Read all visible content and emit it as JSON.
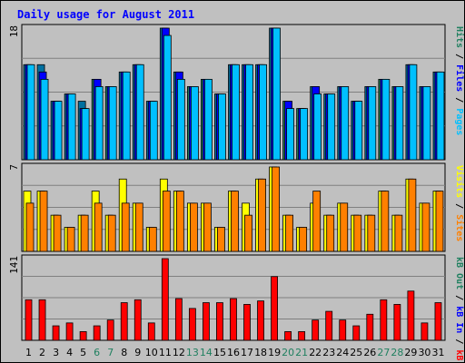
{
  "title": "Daily usage for August 2011",
  "colors": {
    "hits": "#00c0ff",
    "files": "#0000ff",
    "pages": "#00c0ff",
    "visits": "#ffff00",
    "sites": "#ff8000",
    "kbytes": "#ff0000",
    "weekend": "#208060",
    "weekday": "#000000",
    "separator": "#ffffff",
    "kbout": "#208060",
    "kbin": "#0000ff"
  },
  "chart_data": [
    {
      "type": "bar",
      "name": "hits-files-pages",
      "ymax_label": "18",
      "ymax": 18,
      "right_labels": [
        {
          "text": "Pages",
          "color": "#00c0ff"
        },
        {
          "text": " / ",
          "color": "#000000"
        },
        {
          "text": "Files",
          "color": "#0000ff"
        },
        {
          "text": " / ",
          "color": "#000000"
        },
        {
          "text": "Hits",
          "color": "#208060"
        }
      ],
      "categories": [
        "1",
        "2",
        "3",
        "4",
        "5",
        "6",
        "7",
        "8",
        "9",
        "10",
        "11",
        "12",
        "13",
        "14",
        "15",
        "16",
        "17",
        "18",
        "19",
        "20",
        "21",
        "22",
        "23",
        "24",
        "25",
        "26",
        "27",
        "28",
        "29",
        "30",
        "31"
      ],
      "weekend_days": [
        "6",
        "7",
        "13",
        "14",
        "20",
        "21",
        "27",
        "28"
      ],
      "series": [
        {
          "name": "Hits",
          "values": [
            13,
            13,
            8,
            9,
            8,
            11,
            10,
            12,
            13,
            8,
            18,
            12,
            10,
            11,
            9,
            13,
            13,
            13,
            18,
            8,
            7,
            10,
            9,
            10,
            8,
            10,
            11,
            10,
            13,
            10,
            12
          ]
        },
        {
          "name": "Files",
          "values": [
            13,
            12,
            8,
            9,
            7,
            11,
            10,
            12,
            13,
            8,
            18,
            12,
            10,
            11,
            9,
            13,
            13,
            13,
            18,
            8,
            7,
            10,
            9,
            10,
            8,
            10,
            11,
            10,
            13,
            10,
            12
          ]
        },
        {
          "name": "Pages",
          "values": [
            13,
            11,
            8,
            9,
            7,
            10,
            10,
            12,
            13,
            8,
            17,
            11,
            10,
            11,
            9,
            13,
            13,
            13,
            18,
            7,
            7,
            9,
            9,
            10,
            8,
            10,
            11,
            10,
            13,
            10,
            12
          ]
        }
      ]
    },
    {
      "type": "bar",
      "name": "visits-sites",
      "ymax_label": "7",
      "ymax": 7,
      "right_labels": [
        {
          "text": "Sites",
          "color": "#ff8000"
        },
        {
          "text": " / ",
          "color": "#000000"
        },
        {
          "text": "Visits",
          "color": "#ffff00"
        }
      ],
      "categories": [
        "1",
        "2",
        "3",
        "4",
        "5",
        "6",
        "7",
        "8",
        "9",
        "10",
        "11",
        "12",
        "13",
        "14",
        "15",
        "16",
        "17",
        "18",
        "19",
        "20",
        "21",
        "22",
        "23",
        "24",
        "25",
        "26",
        "27",
        "28",
        "29",
        "30",
        "31"
      ],
      "series": [
        {
          "name": "Visits",
          "values": [
            5,
            5,
            3,
            2,
            3,
            5,
            3,
            6,
            4,
            2,
            6,
            5,
            4,
            4,
            2,
            5,
            4,
            6,
            7,
            3,
            2,
            4,
            3,
            4,
            3,
            3,
            5,
            3,
            6,
            4,
            5
          ]
        },
        {
          "name": "Sites",
          "values": [
            4,
            5,
            3,
            2,
            3,
            4,
            3,
            4,
            4,
            2,
            5,
            5,
            4,
            4,
            2,
            5,
            3,
            6,
            7,
            3,
            2,
            5,
            3,
            4,
            3,
            3,
            5,
            3,
            6,
            4,
            5
          ]
        }
      ]
    },
    {
      "type": "bar",
      "name": "kbytes",
      "ymax_label": "141",
      "ymax": 141,
      "right_labels": [
        {
          "text": "kB F",
          "color": "#ff0000"
        },
        {
          "text": " / ",
          "color": "#000000"
        },
        {
          "text": "kB In",
          "color": "#0000ff"
        },
        {
          "text": " / ",
          "color": "#000000"
        },
        {
          "text": "kB Out",
          "color": "#208060"
        }
      ],
      "categories": [
        "1",
        "2",
        "3",
        "4",
        "5",
        "6",
        "7",
        "8",
        "9",
        "10",
        "11",
        "12",
        "13",
        "14",
        "15",
        "16",
        "17",
        "18",
        "19",
        "20",
        "21",
        "22",
        "23",
        "24",
        "25",
        "26",
        "27",
        "28",
        "29",
        "30",
        "31"
      ],
      "series": [
        {
          "name": "kB F",
          "values": [
            70,
            70,
            25,
            30,
            15,
            25,
            35,
            65,
            70,
            30,
            141,
            72,
            55,
            65,
            65,
            72,
            62,
            68,
            110,
            15,
            15,
            35,
            50,
            35,
            25,
            45,
            70,
            62,
            85,
            30,
            65
          ]
        }
      ]
    }
  ]
}
